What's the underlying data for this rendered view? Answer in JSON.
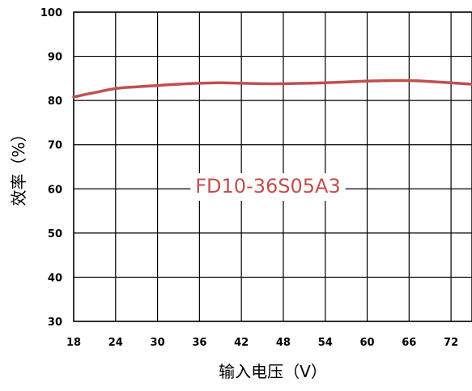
{
  "chart_data": {
    "type": "line",
    "title": "",
    "xlabel": "输入电压（V）",
    "ylabel": "效率（%）",
    "x_ticks": [
      "18",
      "24",
      "30",
      "36",
      "42",
      "48",
      "54",
      "60",
      "66",
      "72"
    ],
    "y_ticks": [
      "30",
      "40",
      "50",
      "60",
      "70",
      "80",
      "90",
      "100"
    ],
    "xlim": [
      18,
      75
    ],
    "ylim": [
      30,
      100
    ],
    "grid": true,
    "annotation": "FD10-36S05A3",
    "series": [
      {
        "color": "#c0504d",
        "x": [
          18,
          21,
          24,
          27,
          30,
          33,
          36,
          39,
          42,
          45,
          48,
          51,
          54,
          57,
          60,
          63,
          66,
          69,
          72,
          75
        ],
        "y": [
          80.8,
          81.8,
          82.7,
          83.1,
          83.4,
          83.7,
          83.9,
          84.0,
          83.9,
          83.8,
          83.8,
          83.9,
          84.0,
          84.2,
          84.4,
          84.5,
          84.5,
          84.3,
          84.0,
          83.7
        ]
      }
    ]
  }
}
